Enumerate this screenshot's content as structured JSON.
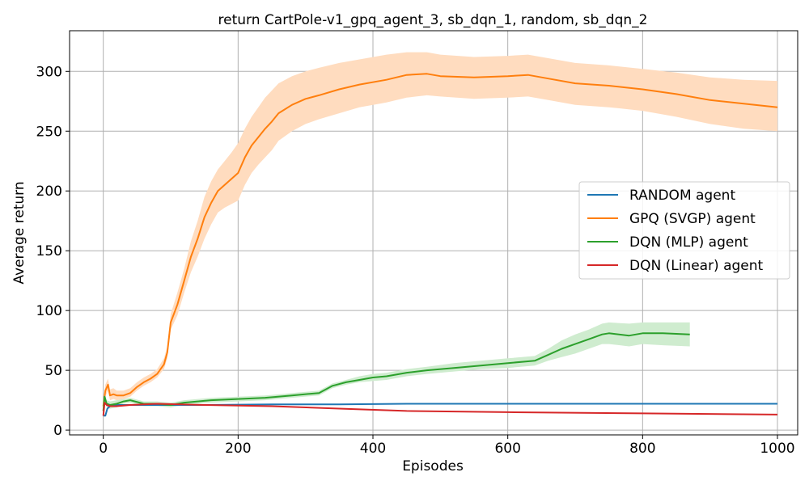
{
  "chart_data": {
    "type": "line",
    "title": "return CartPole-v1_gpq_agent_3, sb_dqn_1, random, sb_dqn_2",
    "xlabel": "Episodes",
    "ylabel": "Average return",
    "xlim": [
      -50,
      1030
    ],
    "ylim": [
      -4,
      334
    ],
    "xticks": [
      0,
      200,
      400,
      600,
      800,
      1000
    ],
    "yticks": [
      0,
      50,
      100,
      150,
      200,
      250,
      300
    ],
    "grid": true,
    "legend_position": "center-right",
    "series": [
      {
        "name": "RANDOM agent",
        "color": "#1f77b4",
        "x": [
          0,
          3,
          6,
          10,
          20,
          40,
          80,
          150,
          250,
          350,
          450,
          600,
          800,
          1000
        ],
        "y": [
          12,
          12,
          18,
          20,
          21,
          21,
          21,
          21,
          21.5,
          21.5,
          22,
          22,
          22,
          22
        ]
      },
      {
        "name": "GPQ (SVGP) agent",
        "color": "#ff7f0e",
        "band_color": "#ffdcbf",
        "x": [
          0,
          3,
          7,
          10,
          15,
          20,
          30,
          40,
          50,
          60,
          70,
          80,
          90,
          95,
          100,
          110,
          120,
          130,
          140,
          150,
          160,
          170,
          180,
          190,
          200,
          210,
          220,
          230,
          240,
          250,
          260,
          280,
          300,
          320,
          350,
          380,
          420,
          450,
          480,
          500,
          550,
          600,
          630,
          660,
          700,
          750,
          800,
          850,
          900,
          950,
          1000
        ],
        "y": [
          20,
          33,
          38,
          29,
          30,
          29,
          29,
          31,
          36,
          40,
          43,
          47,
          55,
          65,
          90,
          105,
          125,
          145,
          160,
          178,
          190,
          200,
          205,
          210,
          215,
          228,
          238,
          245,
          252,
          258,
          265,
          272,
          277,
          280,
          285,
          289,
          293,
          297,
          298,
          296,
          295,
          296,
          297,
          294,
          290,
          288,
          285,
          281,
          276,
          273,
          270
        ],
        "upper": [
          25,
          38,
          43,
          34,
          35,
          33,
          33,
          35,
          40,
          44,
          47,
          51,
          60,
          70,
          97,
          115,
          135,
          158,
          175,
          195,
          208,
          218,
          225,
          232,
          240,
          252,
          262,
          270,
          278,
          284,
          290,
          296,
          300,
          303,
          307,
          310,
          314,
          316,
          316,
          314,
          312,
          313,
          314,
          311,
          307,
          305,
          302,
          299,
          295,
          293,
          292
        ],
        "lower": [
          15,
          28,
          33,
          25,
          26,
          25,
          26,
          28,
          33,
          37,
          40,
          44,
          51,
          60,
          84,
          96,
          115,
          132,
          145,
          160,
          172,
          182,
          186,
          189,
          192,
          205,
          215,
          222,
          228,
          234,
          242,
          250,
          256,
          260,
          265,
          270,
          274,
          278,
          280,
          279,
          277,
          278,
          279,
          276,
          272,
          270,
          267,
          262,
          256,
          252,
          250
        ]
      },
      {
        "name": "DQN (MLP) agent",
        "color": "#2ca02c",
        "band_color": "#cfeccf",
        "x": [
          0,
          2,
          5,
          10,
          20,
          30,
          40,
          60,
          80,
          100,
          120,
          140,
          160,
          200,
          240,
          280,
          320,
          340,
          360,
          380,
          400,
          420,
          450,
          480,
          520,
          560,
          600,
          640,
          660,
          680,
          700,
          720,
          740,
          750,
          780,
          800,
          830,
          870
        ],
        "y": [
          16,
          28,
          22,
          21,
          22,
          24,
          25,
          22,
          22,
          21,
          23,
          24,
          25,
          26,
          27,
          29,
          31,
          37,
          40,
          42,
          44,
          45,
          48,
          50,
          52,
          54,
          56,
          58,
          63,
          68,
          72,
          76,
          80,
          81,
          79,
          81,
          81,
          80
        ],
        "upper": [
          20,
          31,
          25,
          24,
          25,
          26,
          27,
          24,
          24,
          23,
          25,
          26,
          27,
          28,
          29,
          31,
          33,
          39,
          42,
          45,
          47,
          48,
          51,
          53,
          56,
          58,
          60,
          62,
          68,
          75,
          80,
          84,
          89,
          90,
          89,
          90,
          90,
          90
        ],
        "lower": [
          12,
          25,
          19,
          18,
          19,
          22,
          23,
          20,
          20,
          19,
          21,
          22,
          23,
          24,
          25,
          27,
          29,
          35,
          38,
          40,
          41,
          42,
          45,
          47,
          49,
          51,
          52,
          54,
          58,
          61,
          64,
          68,
          72,
          72,
          70,
          72,
          71,
          70
        ]
      },
      {
        "name": "DQN (Linear) agent",
        "color": "#d62728",
        "x": [
          0,
          2,
          5,
          10,
          20,
          40,
          80,
          150,
          250,
          350,
          450,
          600,
          800,
          1000
        ],
        "y": [
          12,
          23,
          21,
          20,
          20,
          21,
          22,
          21,
          20,
          18,
          16,
          15,
          14,
          13
        ]
      }
    ]
  }
}
